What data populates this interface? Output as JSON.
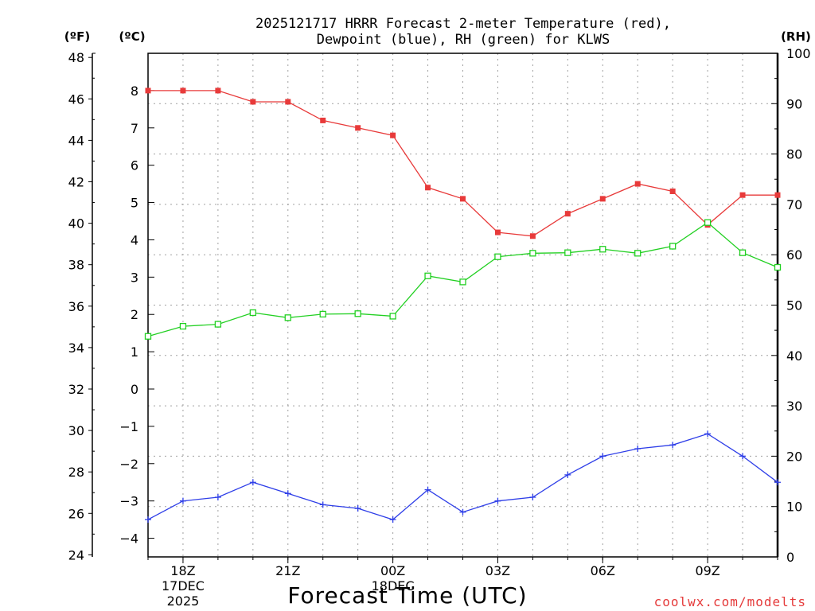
{
  "chart_data": {
    "type": "line",
    "title_line1": "2025121717 HRRR Forecast 2-meter Temperature (red),",
    "title_line2": "Dewpoint (blue), RH (green) for KLWS",
    "left_outer_unit": "(ºF)",
    "left_inner_unit": "(ºC)",
    "right_unit": "(RH)",
    "xlabel": "Forecast Time (UTC)",
    "credit": "coolwx.com/modelts",
    "x": [
      0,
      1,
      2,
      3,
      4,
      5,
      6,
      7,
      8,
      9,
      10,
      11,
      12,
      13,
      14,
      15,
      16,
      17,
      18
    ],
    "xlim": [
      0,
      18
    ],
    "x_ticks": [
      {
        "x": 1,
        "lines": [
          "18Z",
          "17DEC",
          "2025"
        ]
      },
      {
        "x": 4,
        "lines": [
          "21Z"
        ]
      },
      {
        "x": 7,
        "lines": [
          "00Z",
          "18DEC"
        ]
      },
      {
        "x": 10,
        "lines": [
          "03Z"
        ]
      },
      {
        "x": 13,
        "lines": [
          "06Z"
        ]
      },
      {
        "x": 16,
        "lines": [
          "09Z"
        ]
      }
    ],
    "ylim_c": [
      -4.5,
      9.0
    ],
    "y_ticks_c": [
      "8",
      "7",
      "6",
      "5",
      "4",
      "3",
      "2",
      "1",
      "0",
      "−1",
      "−2",
      "−3",
      "−4"
    ],
    "y_tick_values_c": [
      8,
      7,
      6,
      5,
      4,
      3,
      2,
      1,
      0,
      -1,
      -2,
      -3,
      -4
    ],
    "y_ticks_f": [
      "48",
      "46",
      "44",
      "42",
      "40",
      "38",
      "36",
      "34",
      "32",
      "30",
      "28",
      "26",
      "24"
    ],
    "y_tick_values_f": [
      48,
      46,
      44,
      42,
      40,
      38,
      36,
      34,
      32,
      30,
      28,
      26,
      24
    ],
    "ylim_rh": [
      0,
      100
    ],
    "y_ticks_rh": [
      "100",
      "90",
      "80",
      "70",
      "60",
      "50",
      "40",
      "30",
      "20",
      "10",
      "0"
    ],
    "y_tick_values_rh": [
      100,
      90,
      80,
      70,
      60,
      50,
      40,
      30,
      20,
      10,
      0
    ],
    "series": [
      {
        "name": "Temperature",
        "axis": "c",
        "color": "#e83a3a",
        "marker": "filled-square",
        "values": [
          8.0,
          8.0,
          8.0,
          7.7,
          7.7,
          7.2,
          7.0,
          6.8,
          5.4,
          5.1,
          4.2,
          4.1,
          4.7,
          5.1,
          5.5,
          5.3,
          4.4,
          5.2,
          5.2
        ]
      },
      {
        "name": "Dewpoint",
        "axis": "c",
        "color": "#2e3ee8",
        "marker": "plus",
        "values": [
          -3.5,
          -3.0,
          -2.9,
          -2.5,
          -2.8,
          -3.1,
          -3.2,
          -3.5,
          -2.7,
          -3.3,
          -3.0,
          -2.9,
          -2.3,
          -1.8,
          -1.6,
          -1.5,
          -1.2,
          -1.8,
          -2.5
        ]
      },
      {
        "name": "RH",
        "axis": "rh",
        "color": "#22d022",
        "marker": "open-square",
        "values": [
          43.8,
          45.8,
          46.2,
          48.5,
          47.5,
          48.2,
          48.3,
          47.8,
          55.8,
          54.6,
          59.6,
          60.3,
          60.4,
          61.1,
          60.3,
          61.7,
          66.4,
          60.4,
          57.5
        ]
      }
    ]
  }
}
